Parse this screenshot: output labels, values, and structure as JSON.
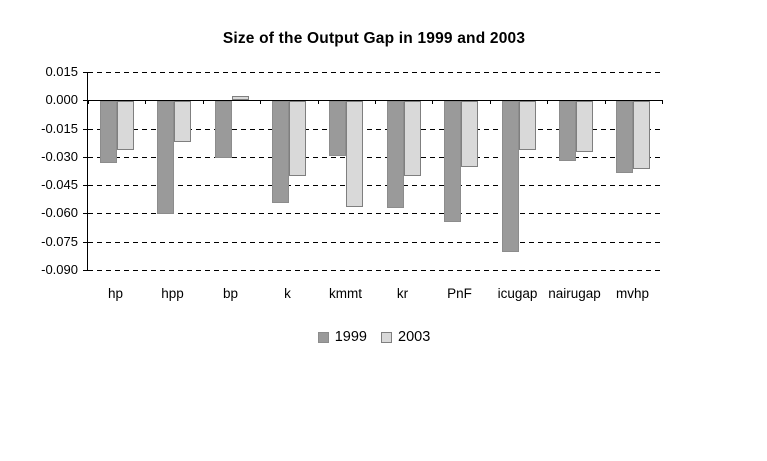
{
  "chart_data": {
    "type": "bar",
    "title": "Size of the Output Gap in 1999 and 2003",
    "categories": [
      "hp",
      "hpp",
      "bp",
      "k",
      "kmmt",
      "kr",
      "PnF",
      "icugap",
      "nairugap",
      "mvhp"
    ],
    "series": [
      {
        "name": "1999",
        "color": "#9a9a9a",
        "border_color": "#8c8c8c",
        "values": [
          -0.033,
          -0.06,
          -0.03,
          -0.054,
          -0.029,
          -0.057,
          -0.064,
          -0.08,
          -0.032,
          -0.038
        ]
      },
      {
        "name": "2003",
        "color": "#d9d9d9",
        "border_color": "#7f7f7f",
        "values": [
          -0.026,
          -0.022,
          0.002,
          -0.04,
          -0.056,
          -0.04,
          -0.035,
          -0.026,
          -0.027,
          -0.036
        ]
      }
    ],
    "ylim": [
      -0.09,
      0.015
    ],
    "ytick_labels": [
      "0.015",
      "0.000",
      "-0.015",
      "-0.030",
      "-0.045",
      "-0.060",
      "-0.075",
      "-0.090"
    ],
    "grid": "dashed-horizontal",
    "legend_position": "bottom",
    "background": "#ffffff",
    "axis_color": "#000000"
  }
}
